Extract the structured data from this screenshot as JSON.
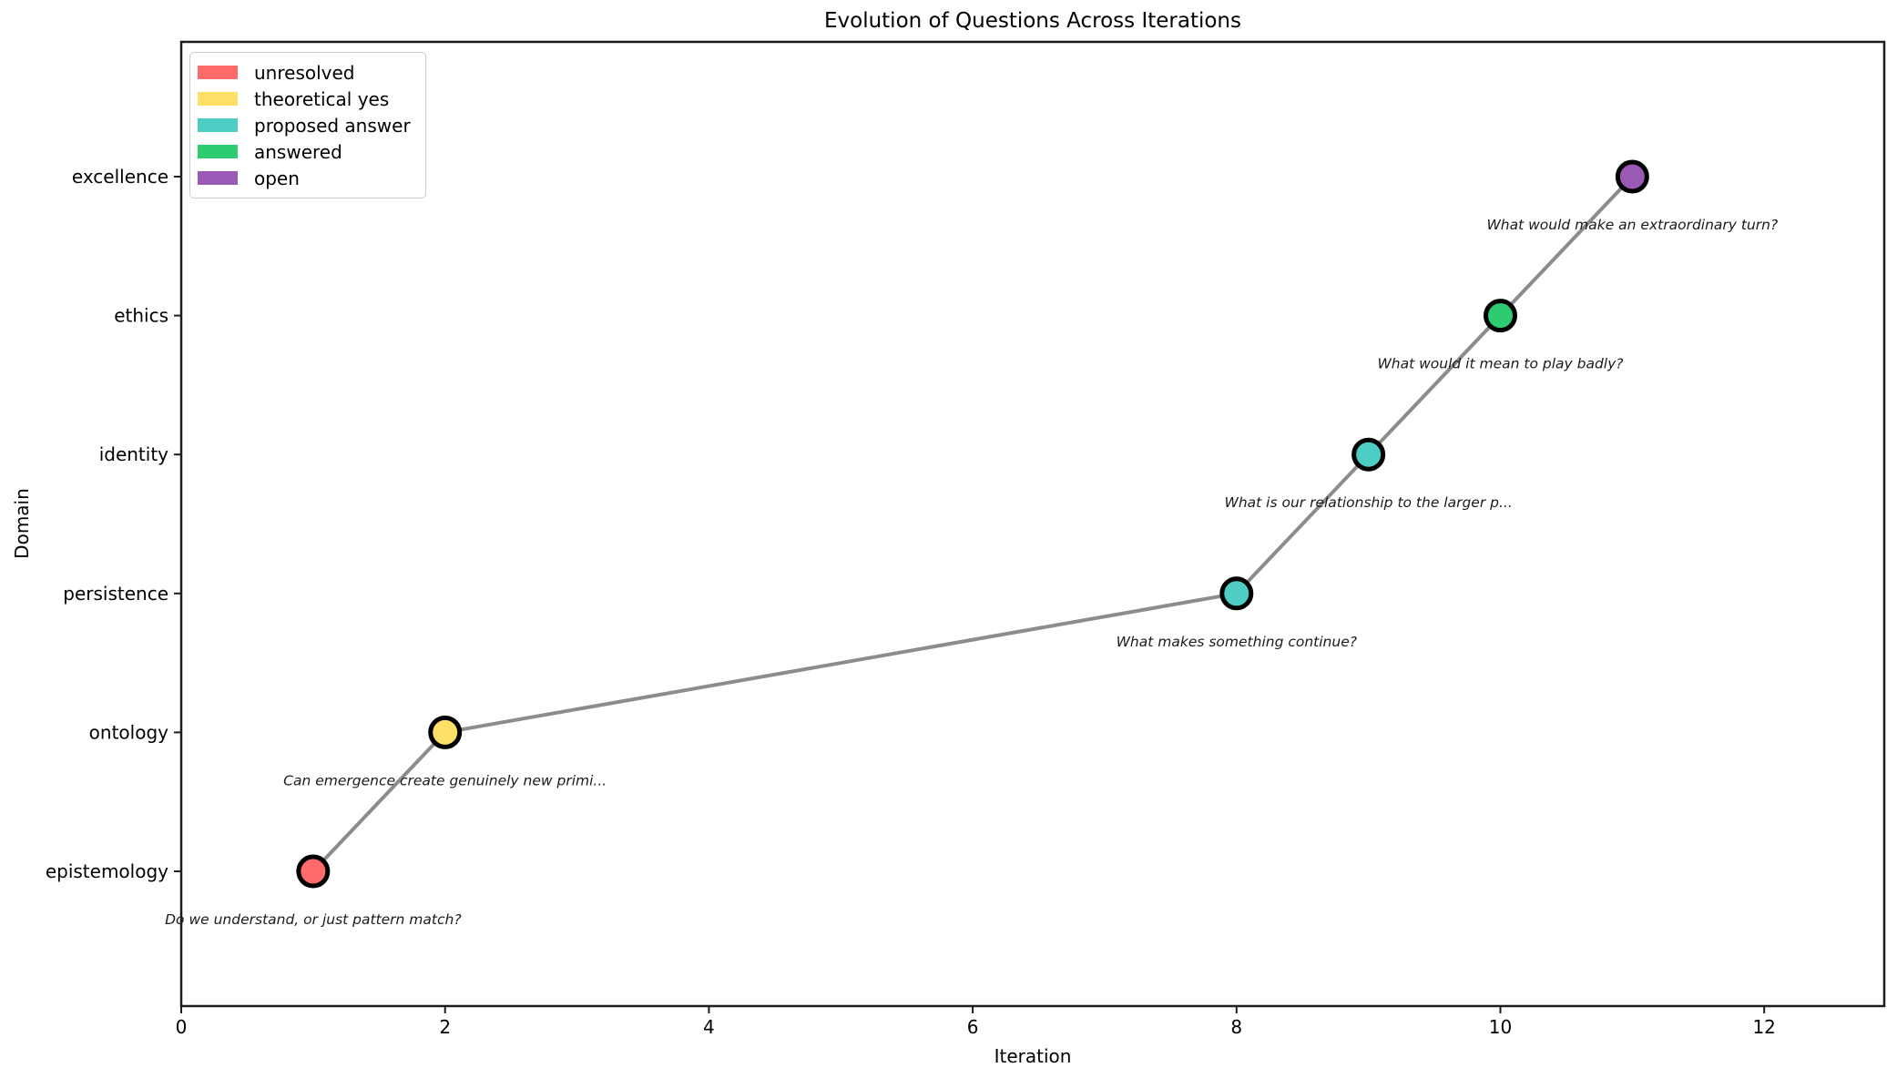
{
  "chart_data": {
    "type": "scatter",
    "title": "Evolution of Questions Across Iterations",
    "xlabel": "Iteration",
    "ylabel": "Domain",
    "xlim": [
      0,
      12.91
    ],
    "ylim": [
      -0.97,
      5.97
    ],
    "x_ticks": [
      0,
      2,
      4,
      6,
      8,
      10,
      12
    ],
    "y_categories": [
      "epistemology",
      "ontology",
      "persistence",
      "identity",
      "ethics",
      "excellence"
    ],
    "grid": false,
    "legend_position": "upper-left",
    "legend": [
      {
        "label": "unresolved",
        "color": "#ff6b6b"
      },
      {
        "label": "theoretical yes",
        "color": "#ffe066"
      },
      {
        "label": "proposed answer",
        "color": "#4ecdc4"
      },
      {
        "label": "answered",
        "color": "#2ecc71"
      },
      {
        "label": "open",
        "color": "#9b59b6"
      }
    ],
    "line": {
      "color": "#8c8c8c",
      "width": 4
    },
    "marker": {
      "radius": 16,
      "edge_color": "#000000",
      "edge_width": 5
    },
    "annotation_style": {
      "color": "#1a1a1a",
      "italic": true,
      "size": 15.5
    },
    "points": [
      {
        "x": 1,
        "domain": "epistemology",
        "status": "unresolved",
        "color": "#ff6b6b",
        "annotation": "Do we understand, or just pattern match?"
      },
      {
        "x": 2,
        "domain": "ontology",
        "status": "theoretical yes",
        "color": "#ffe066",
        "annotation": "Can emergence create genuinely new primi..."
      },
      {
        "x": 8,
        "domain": "persistence",
        "status": "proposed answer",
        "color": "#4ecdc4",
        "annotation": "What makes something continue?"
      },
      {
        "x": 9,
        "domain": "identity",
        "status": "proposed answer",
        "color": "#4ecdc4",
        "annotation": "What is our relationship to the larger p..."
      },
      {
        "x": 10,
        "domain": "ethics",
        "status": "answered",
        "color": "#2ecc71",
        "annotation": "What would it mean to play badly?"
      },
      {
        "x": 11,
        "domain": "excellence",
        "status": "open",
        "color": "#9b59b6",
        "annotation": "What would make an extraordinary turn?"
      }
    ]
  }
}
